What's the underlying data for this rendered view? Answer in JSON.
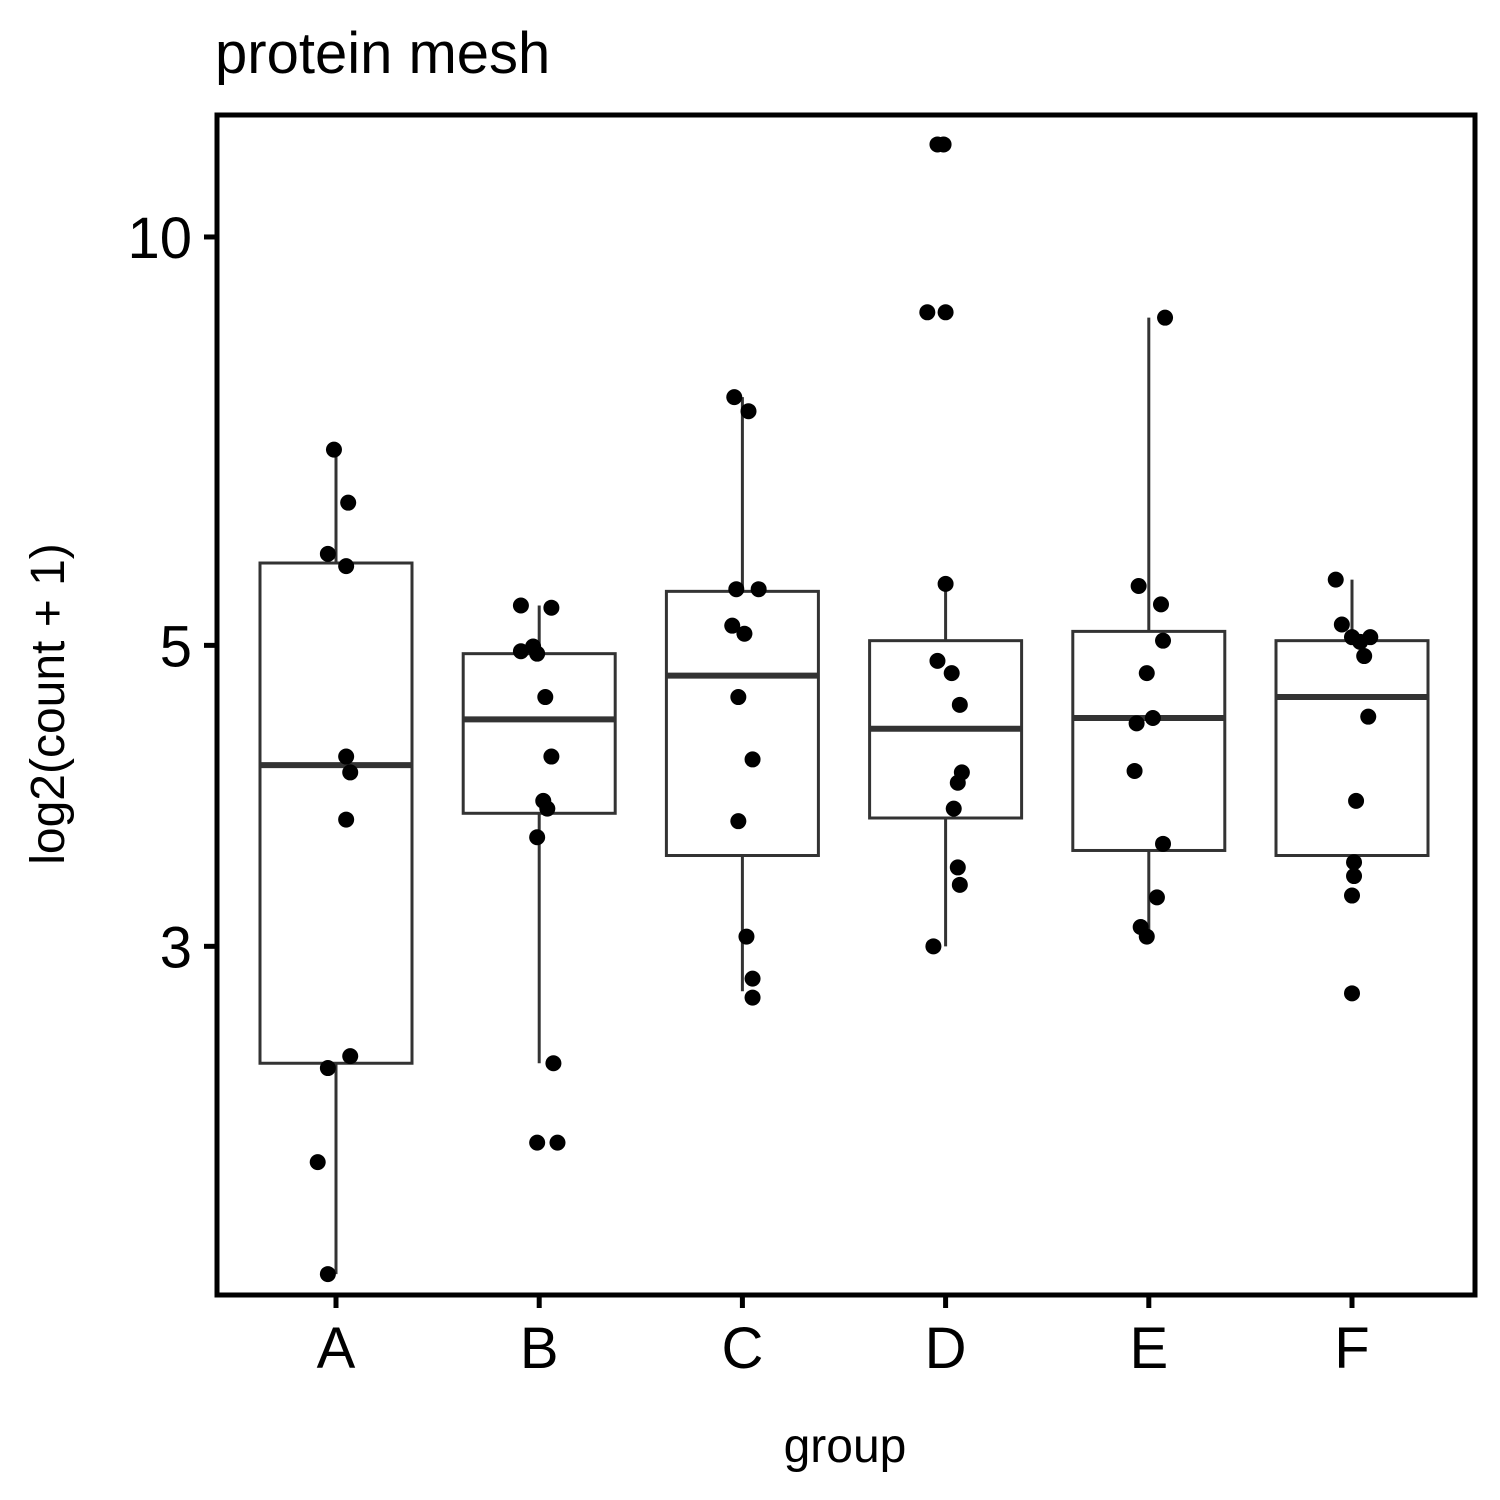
{
  "chart_data": {
    "type": "box",
    "title": "protein mesh",
    "xlabel": "group",
    "ylabel": "log2(count + 1)",
    "y_scale": "log",
    "ylim": [
      1.66,
      12.3
    ],
    "y_ticks": [
      3,
      5,
      10
    ],
    "grid": false,
    "categories": [
      "A",
      "B",
      "C",
      "D",
      "E",
      "F"
    ],
    "boxes": [
      {
        "group": "A",
        "whisker_low": 1.72,
        "q1": 2.46,
        "median": 4.08,
        "q3": 5.75,
        "whisker_high": 6.95
      },
      {
        "group": "B",
        "whisker_low": 2.46,
        "q1": 3.76,
        "median": 4.41,
        "q3": 4.93,
        "whisker_high": 5.35
      },
      {
        "group": "C",
        "whisker_low": 2.78,
        "q1": 3.5,
        "median": 4.75,
        "q3": 5.48,
        "whisker_high": 7.62
      },
      {
        "group": "D",
        "whisker_low": 3.0,
        "q1": 3.73,
        "median": 4.34,
        "q3": 5.04,
        "whisker_high": 5.57
      },
      {
        "group": "E",
        "whisker_low": 3.05,
        "q1": 3.53,
        "median": 4.42,
        "q3": 5.12,
        "whisker_high": 8.72
      },
      {
        "group": "F",
        "whisker_low": 3.38,
        "q1": 3.5,
        "median": 4.58,
        "q3": 5.04,
        "whisker_high": 5.59
      }
    ],
    "points": [
      {
        "group": "A",
        "jitter": -0.01,
        "y": 6.97
      },
      {
        "group": "A",
        "jitter": 0.06,
        "y": 6.37
      },
      {
        "group": "A",
        "jitter": -0.04,
        "y": 5.84
      },
      {
        "group": "A",
        "jitter": 0.05,
        "y": 5.72
      },
      {
        "group": "A",
        "jitter": 0.05,
        "y": 4.14
      },
      {
        "group": "A",
        "jitter": 0.07,
        "y": 4.03
      },
      {
        "group": "A",
        "jitter": 0.05,
        "y": 3.72
      },
      {
        "group": "A",
        "jitter": 0.07,
        "y": 2.49
      },
      {
        "group": "A",
        "jitter": -0.04,
        "y": 2.44
      },
      {
        "group": "A",
        "jitter": -0.09,
        "y": 2.08
      },
      {
        "group": "A",
        "jitter": -0.04,
        "y": 1.72
      },
      {
        "group": "B",
        "jitter": -0.09,
        "y": 5.35
      },
      {
        "group": "B",
        "jitter": 0.06,
        "y": 5.33
      },
      {
        "group": "B",
        "jitter": -0.03,
        "y": 4.99
      },
      {
        "group": "B",
        "jitter": -0.09,
        "y": 4.95
      },
      {
        "group": "B",
        "jitter": -0.01,
        "y": 4.93
      },
      {
        "group": "B",
        "jitter": 0.03,
        "y": 4.58
      },
      {
        "group": "B",
        "jitter": 0.06,
        "y": 4.14
      },
      {
        "group": "B",
        "jitter": 0.02,
        "y": 3.84
      },
      {
        "group": "B",
        "jitter": 0.04,
        "y": 3.79
      },
      {
        "group": "B",
        "jitter": -0.01,
        "y": 3.61
      },
      {
        "group": "B",
        "jitter": 0.07,
        "y": 2.46
      },
      {
        "group": "B",
        "jitter": -0.01,
        "y": 2.15
      },
      {
        "group": "B",
        "jitter": 0.09,
        "y": 2.15
      },
      {
        "group": "C",
        "jitter": -0.04,
        "y": 7.62
      },
      {
        "group": "C",
        "jitter": 0.03,
        "y": 7.44
      },
      {
        "group": "C",
        "jitter": -0.03,
        "y": 5.5
      },
      {
        "group": "C",
        "jitter": 0.08,
        "y": 5.5
      },
      {
        "group": "C",
        "jitter": -0.05,
        "y": 5.17
      },
      {
        "group": "C",
        "jitter": 0.01,
        "y": 5.1
      },
      {
        "group": "C",
        "jitter": -0.02,
        "y": 4.58
      },
      {
        "group": "C",
        "jitter": 0.05,
        "y": 4.12
      },
      {
        "group": "C",
        "jitter": -0.02,
        "y": 3.71
      },
      {
        "group": "C",
        "jitter": 0.02,
        "y": 3.05
      },
      {
        "group": "C",
        "jitter": 0.05,
        "y": 2.84
      },
      {
        "group": "C",
        "jitter": 0.05,
        "y": 2.75
      },
      {
        "group": "D",
        "jitter": -0.04,
        "y": 11.7
      },
      {
        "group": "D",
        "jitter": -0.01,
        "y": 11.7
      },
      {
        "group": "D",
        "jitter": -0.09,
        "y": 8.8
      },
      {
        "group": "D",
        "jitter": 0.0,
        "y": 8.8
      },
      {
        "group": "D",
        "jitter": 0.0,
        "y": 5.55
      },
      {
        "group": "D",
        "jitter": -0.04,
        "y": 4.87
      },
      {
        "group": "D",
        "jitter": 0.03,
        "y": 4.77
      },
      {
        "group": "D",
        "jitter": 0.07,
        "y": 4.52
      },
      {
        "group": "D",
        "jitter": 0.08,
        "y": 4.03
      },
      {
        "group": "D",
        "jitter": 0.06,
        "y": 3.96
      },
      {
        "group": "D",
        "jitter": 0.04,
        "y": 3.79
      },
      {
        "group": "D",
        "jitter": 0.06,
        "y": 3.43
      },
      {
        "group": "D",
        "jitter": 0.07,
        "y": 3.33
      },
      {
        "group": "D",
        "jitter": -0.06,
        "y": 3.0
      },
      {
        "group": "E",
        "jitter": 0.08,
        "y": 8.72
      },
      {
        "group": "E",
        "jitter": -0.05,
        "y": 5.53
      },
      {
        "group": "E",
        "jitter": 0.06,
        "y": 5.36
      },
      {
        "group": "E",
        "jitter": 0.07,
        "y": 5.04
      },
      {
        "group": "E",
        "jitter": -0.01,
        "y": 4.77
      },
      {
        "group": "E",
        "jitter": 0.02,
        "y": 4.42
      },
      {
        "group": "E",
        "jitter": -0.06,
        "y": 4.38
      },
      {
        "group": "E",
        "jitter": -0.07,
        "y": 4.04
      },
      {
        "group": "E",
        "jitter": 0.07,
        "y": 3.57
      },
      {
        "group": "E",
        "jitter": 0.04,
        "y": 3.26
      },
      {
        "group": "E",
        "jitter": -0.04,
        "y": 3.1
      },
      {
        "group": "E",
        "jitter": -0.01,
        "y": 3.05
      },
      {
        "group": "F",
        "jitter": -0.08,
        "y": 5.59
      },
      {
        "group": "F",
        "jitter": -0.05,
        "y": 5.18
      },
      {
        "group": "F",
        "jitter": 0.0,
        "y": 5.07
      },
      {
        "group": "F",
        "jitter": 0.04,
        "y": 5.03
      },
      {
        "group": "F",
        "jitter": 0.09,
        "y": 5.07
      },
      {
        "group": "F",
        "jitter": 0.06,
        "y": 4.91
      },
      {
        "group": "F",
        "jitter": 0.08,
        "y": 4.43
      },
      {
        "group": "F",
        "jitter": 0.02,
        "y": 3.84
      },
      {
        "group": "F",
        "jitter": 0.01,
        "y": 3.46
      },
      {
        "group": "F",
        "jitter": 0.01,
        "y": 3.38
      },
      {
        "group": "F",
        "jitter": 0.0,
        "y": 3.27
      },
      {
        "group": "F",
        "jitter": 0.0,
        "y": 2.77
      }
    ],
    "colors": {
      "box_line": "#333333",
      "points": "#000000",
      "frame": "#000000",
      "background": "#ffffff"
    }
  }
}
